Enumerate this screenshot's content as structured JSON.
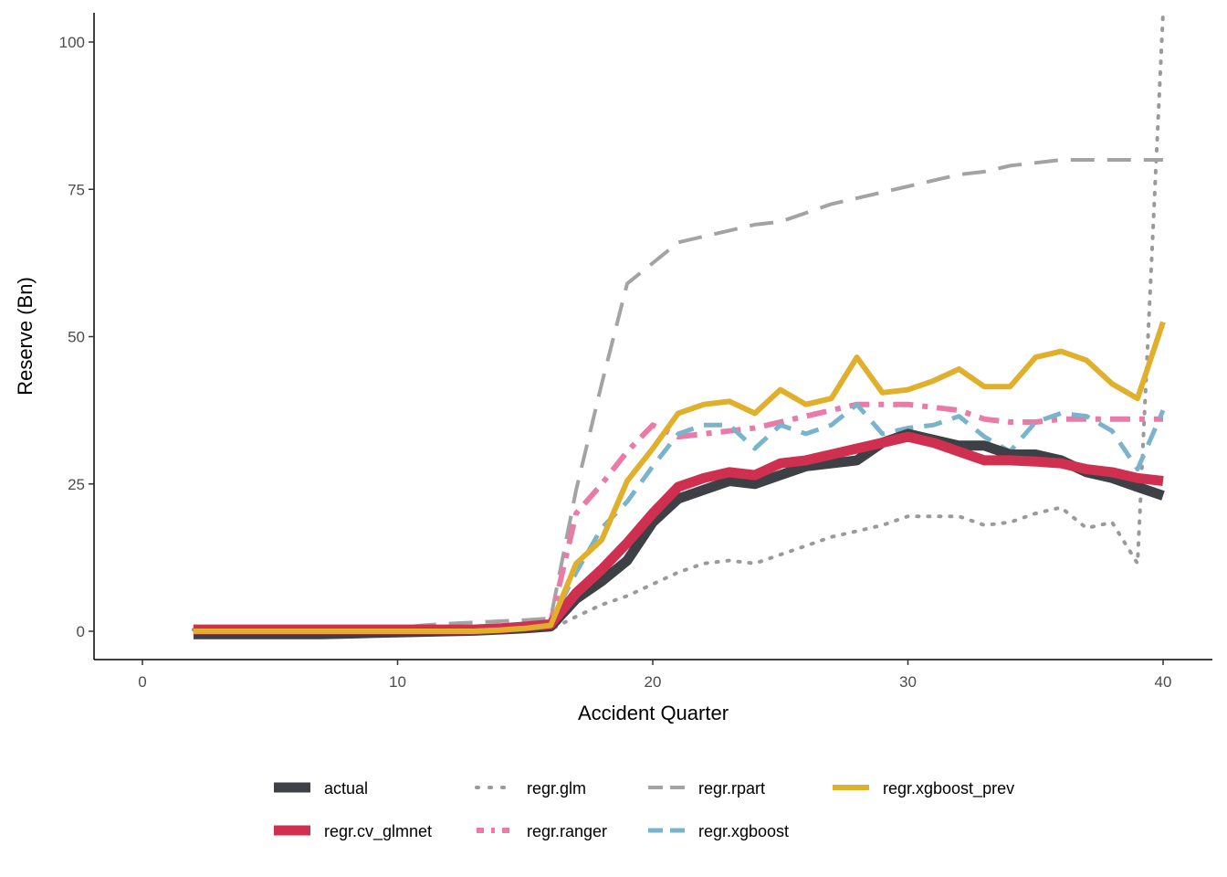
{
  "chart_data": {
    "type": "line",
    "title": "",
    "xlabel": "Accident Quarter",
    "ylabel": "Reserve (Bn)",
    "xlim": [
      -2,
      42
    ],
    "ylim": [
      -5,
      105
    ],
    "xticks": [
      0,
      10,
      20,
      30,
      40
    ],
    "yticks": [
      0,
      25,
      50,
      75,
      100
    ],
    "grid": false,
    "legend_position": "bottom",
    "x": [
      2,
      3,
      4,
      5,
      6,
      7,
      8,
      9,
      10,
      11,
      12,
      13,
      14,
      15,
      16,
      17,
      18,
      19,
      20,
      21,
      22,
      23,
      24,
      25,
      26,
      27,
      28,
      29,
      30,
      31,
      32,
      33,
      34,
      35,
      36,
      37,
      38,
      39,
      40
    ],
    "series": [
      {
        "name": "actual",
        "color": "#3d4145",
        "style": "solid",
        "width": 11,
        "values": [
          -0.5,
          -0.5,
          -0.5,
          -0.5,
          -0.5,
          -0.5,
          -0.4,
          -0.3,
          -0.2,
          -0.1,
          0.0,
          0.1,
          0.3,
          0.5,
          0.8,
          5.5,
          8.5,
          12.0,
          18.5,
          22.5,
          24.0,
          25.5,
          25.0,
          26.5,
          28.0,
          28.5,
          29.0,
          32.0,
          33.5,
          32.5,
          31.5,
          31.5,
          30.0,
          30.0,
          29.0,
          27.0,
          26.0,
          24.5,
          23.0
        ]
      },
      {
        "name": "regr.glm",
        "color": "#9a9a9a",
        "style": "dotted",
        "width": 4,
        "values": [
          0.3,
          0.3,
          0.3,
          0.3,
          0.3,
          0.3,
          0.3,
          0.3,
          0.3,
          0.3,
          0.3,
          0.3,
          0.3,
          0.3,
          0.3,
          2.5,
          4.5,
          6.0,
          8.0,
          10.0,
          11.5,
          12.0,
          11.5,
          13.0,
          14.5,
          16.0,
          17.0,
          18.0,
          19.5,
          19.5,
          19.5,
          18.0,
          18.5,
          20.0,
          21.0,
          17.5,
          18.5,
          11.5,
          105.0
        ]
      },
      {
        "name": "regr.rpart",
        "color": "#a3a3a3",
        "style": "longdash",
        "width": 4,
        "values": [
          0.3,
          0.3,
          0.3,
          0.3,
          0.3,
          0.3,
          0.3,
          0.3,
          0.6,
          1.0,
          1.3,
          1.5,
          1.7,
          1.9,
          2.2,
          24.0,
          42.0,
          59.0,
          62.5,
          66.0,
          67.0,
          68.0,
          69.0,
          69.5,
          71.0,
          72.5,
          73.5,
          74.5,
          75.5,
          76.5,
          77.5,
          78.0,
          79.0,
          79.5,
          80.0,
          80.0,
          80.0,
          80.0,
          80.0
        ]
      },
      {
        "name": "regr.xgboost_prev",
        "color": "#e0af2b",
        "style": "solid",
        "width": 6,
        "values": [
          0.0,
          0.0,
          0.0,
          0.0,
          0.0,
          0.0,
          0.0,
          0.0,
          0.0,
          0.0,
          0.0,
          0.0,
          0.2,
          0.5,
          1.0,
          11.5,
          15.5,
          25.5,
          31.0,
          37.0,
          38.5,
          39.0,
          37.0,
          41.0,
          38.5,
          39.5,
          46.5,
          40.5,
          41.0,
          42.5,
          44.5,
          41.5,
          41.5,
          46.5,
          47.5,
          46.0,
          42.0,
          39.5,
          52.5
        ]
      },
      {
        "name": "regr.cv_glmnet",
        "color": "#d0304f",
        "style": "solid",
        "width": 11,
        "values": [
          0.3,
          0.3,
          0.3,
          0.3,
          0.3,
          0.3,
          0.3,
          0.3,
          0.3,
          0.3,
          0.3,
          0.3,
          0.5,
          0.8,
          1.2,
          6.5,
          10.5,
          15.0,
          20.0,
          24.5,
          26.0,
          27.0,
          26.5,
          28.5,
          29.0,
          30.0,
          31.0,
          32.0,
          33.0,
          32.0,
          30.5,
          29.0,
          29.0,
          28.8,
          28.5,
          27.5,
          27.0,
          26.0,
          25.5
        ]
      },
      {
        "name": "regr.ranger",
        "color": "#e87ba8",
        "style": "dashdot",
        "width": 6,
        "values": [
          0.2,
          0.2,
          0.2,
          0.2,
          0.2,
          0.2,
          0.2,
          0.2,
          0.2,
          0.2,
          0.2,
          0.3,
          0.5,
          0.8,
          1.5,
          20.0,
          25.0,
          30.5,
          35.0,
          33.0,
          33.5,
          34.0,
          34.5,
          35.5,
          36.5,
          37.5,
          38.5,
          38.5,
          38.5,
          38.0,
          37.5,
          36.0,
          35.5,
          35.5,
          36.0,
          36.0,
          36.0,
          36.0,
          36.0
        ]
      },
      {
        "name": "regr.xgboost",
        "color": "#79b4cc",
        "style": "dashed",
        "width": 5,
        "values": [
          0.2,
          0.2,
          0.2,
          0.2,
          0.2,
          0.2,
          0.2,
          0.2,
          0.2,
          0.2,
          0.2,
          0.3,
          0.5,
          0.8,
          1.5,
          10.0,
          17.5,
          22.0,
          28.0,
          33.5,
          35.0,
          35.0,
          31.0,
          35.0,
          33.5,
          35.0,
          38.5,
          33.5,
          34.5,
          35.0,
          36.5,
          33.0,
          30.5,
          35.5,
          37.0,
          36.5,
          34.0,
          27.5,
          37.5
        ]
      }
    ],
    "legend": {
      "row1": [
        {
          "label": "actual",
          "series": "actual"
        },
        {
          "label": "regr.glm",
          "series": "regr.glm"
        },
        {
          "label": "regr.rpart",
          "series": "regr.rpart"
        },
        {
          "label": "regr.xgboost_prev",
          "series": "regr.xgboost_prev"
        }
      ],
      "row2": [
        {
          "label": "regr.cv_glmnet",
          "series": "regr.cv_glmnet"
        },
        {
          "label": "regr.ranger",
          "series": "regr.ranger"
        },
        {
          "label": "regr.xgboost",
          "series": "regr.xgboost"
        }
      ]
    }
  }
}
